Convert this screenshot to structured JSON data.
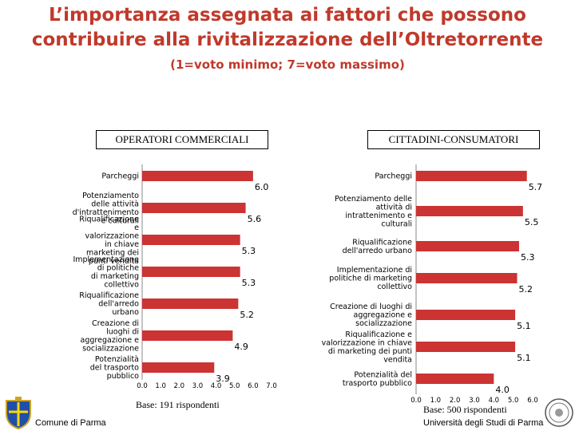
{
  "title_line1": "L’importanza assegnata ai fattori che possono",
  "title_line2": "contribuire alla rivitalizzazione dell’Oltretorrente",
  "subtitle": "(1=voto minimo; 7=voto massimo)",
  "footer": {
    "left_label": "Comune di Parma",
    "right_label": "Università degli Studi di Parma"
  },
  "colors": {
    "bar": "#cc3333",
    "title": "#c0392b"
  },
  "chart_data": [
    {
      "type": "bar",
      "orientation": "horizontal",
      "title": "OPERATORI COMMERCIALI",
      "categories": [
        "Parcheggi",
        "Potenziamento delle attività d'intrattenimento e culturali",
        "Riqualificazione e valorizzazione in chiave marketing dei punti vendita",
        "Implementazione di politiche di marketing collettivo",
        "Riqualificazione dell'arredo urbano",
        "Creazione di luoghi di aggregazione e socializzazione",
        "Potenzialità del trasporto pubblico"
      ],
      "values": [
        6.0,
        5.6,
        5.3,
        5.3,
        5.2,
        4.9,
        3.9
      ],
      "value_labels": [
        "6.0",
        "5.6",
        "5.3",
        "5.3",
        "5.2",
        "4.9",
        "3.9"
      ],
      "xlim": [
        0,
        7
      ],
      "x_ticks": [
        "0.0",
        "1.0",
        "2.0",
        "3.0",
        "4.0",
        "5.0",
        "6.0",
        "7.0"
      ],
      "note": "Base: 191 rispondenti"
    },
    {
      "type": "bar",
      "orientation": "horizontal",
      "title": "CITTADINI-CONSUMATORI",
      "categories": [
        "Parcheggi",
        "Potenziamento delle attività di intrattenimento e culturali",
        "Riqualificazione dell'arredo urbano",
        "Implementazione di politiche di marketing collettivo",
        "Creazione di luoghi di aggregazione e socializzazione",
        "Riqualificazione e valorizzazione in chiave di marketing dei punti vendita",
        "Potenzialità del trasporto pubblico"
      ],
      "values": [
        5.7,
        5.5,
        5.3,
        5.2,
        5.1,
        5.1,
        4.0
      ],
      "value_labels": [
        "5.7",
        "5.5",
        "5.3",
        "5.2",
        "5.1",
        "5.1",
        "4.0"
      ],
      "xlim": [
        0,
        6
      ],
      "x_ticks": [
        "0.0",
        "1.0",
        "2.0",
        "3.0",
        "4.0",
        "5.0",
        "6.0"
      ],
      "note": "Base: 500 rispondenti"
    }
  ]
}
